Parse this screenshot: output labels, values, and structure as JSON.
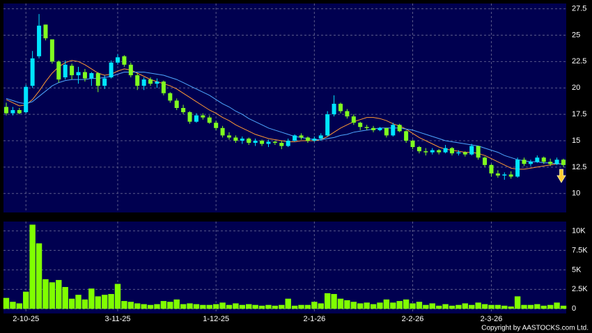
{
  "chart_data": {
    "type": "candlestick",
    "categories": [
      null,
      null,
      null,
      "2-10-25",
      null,
      null,
      null,
      null,
      null,
      null,
      null,
      null,
      null,
      null,
      null,
      null,
      null,
      "3-11-25",
      null,
      null,
      null,
      null,
      null,
      null,
      null,
      null,
      null,
      null,
      null,
      null,
      null,
      null,
      "1-12-25",
      null,
      null,
      null,
      null,
      null,
      null,
      null,
      null,
      null,
      null,
      null,
      null,
      null,
      null,
      "2-1-26",
      null,
      null,
      null,
      null,
      null,
      null,
      null,
      null,
      null,
      null,
      null,
      null,
      null,
      null,
      "2-2-26",
      null,
      null,
      null,
      null,
      null,
      null,
      null,
      null,
      null,
      null,
      null,
      "2-3-26",
      null,
      null,
      null,
      null,
      null,
      null,
      null,
      null,
      null,
      null,
      null
    ],
    "open": [
      18.2,
      17.6,
      17.9,
      17.7,
      20.2,
      23,
      26,
      24.6,
      22.5,
      21,
      22.1,
      21.2,
      21.5,
      20.9,
      21.4,
      20.2,
      21,
      22.4,
      23,
      22.2,
      21.2,
      20.2,
      20.8,
      20.4,
      20.6,
      19.5,
      18.8,
      18.1,
      17.7,
      16.8,
      17.4,
      17.2,
      16.7,
      16.2,
      15.5,
      15.3,
      15,
      15.2,
      14.8,
      15,
      14.7,
      14.9,
      14.8,
      14.5,
      15,
      15.5,
      15.3,
      15,
      15.2,
      15.5,
      17.5,
      18.5,
      17.8,
      17.3,
      16.7,
      16.3,
      16.2,
      16,
      16.2,
      15.5,
      16.5,
      15.9,
      15,
      14.4,
      14,
      13.9,
      14.1,
      13.9,
      14.3,
      13.8,
      13.9,
      13.7,
      14.5,
      13.4,
      12.7,
      11.9,
      11.7,
      11.8,
      11.6,
      13.2,
      12.8,
      13,
      13.4,
      13,
      12.8,
      13.2
    ],
    "high": [
      18.6,
      18.2,
      18.1,
      20.3,
      23.5,
      27,
      26,
      24.6,
      22.6,
      22.6,
      22.3,
      22,
      21.8,
      21.5,
      21.5,
      21.2,
      22.6,
      23.2,
      23.1,
      22.4,
      21.4,
      21,
      21,
      20.9,
      20.7,
      19.6,
      19,
      18.4,
      17.8,
      17.6,
      17.6,
      17.4,
      16.9,
      16.4,
      15.8,
      15.5,
      15.4,
      15.3,
      15.2,
      15.1,
      15.1,
      15,
      15,
      15.2,
      15.6,
      15.7,
      15.4,
      15.4,
      15.7,
      17.8,
      19.3,
      18.6,
      18,
      17.5,
      16.8,
      16.5,
      16.4,
      16.3,
      16.2,
      16.7,
      16.6,
      16,
      15.1,
      14.5,
      14.3,
      14.3,
      14.2,
      14.6,
      14.4,
      14.1,
      14,
      14.7,
      14.5,
      13.5,
      12.8,
      12.2,
      12,
      12.1,
      13.4,
      13.4,
      13.2,
      13.6,
      13.5,
      13.3,
      13.4,
      13.3
    ],
    "low": [
      17.4,
      17.4,
      17.5,
      17.6,
      20,
      22.8,
      24.5,
      22.3,
      20.5,
      20.8,
      20.8,
      20.4,
      20.6,
      20.2,
      19.6,
      19.9,
      20.9,
      22.2,
      22,
      21,
      19.8,
      19.8,
      20.2,
      20,
      19.3,
      18.6,
      17.9,
      17.5,
      16.6,
      16.7,
      17,
      16.6,
      16,
      15.3,
      15.1,
      14.8,
      14.7,
      14.6,
      14.5,
      14.5,
      14.4,
      14.6,
      14.2,
      14.4,
      14.9,
      15.1,
      14.8,
      14.9,
      15,
      15.4,
      17.3,
      17.6,
      17.1,
      16.5,
      16,
      16,
      15.8,
      15.9,
      15.3,
      15.4,
      15.8,
      14.8,
      14.2,
      13.8,
      13.6,
      13.7,
      13.7,
      13.8,
      13.6,
      13.6,
      13.5,
      13.6,
      13.2,
      12.5,
      11.6,
      11.5,
      11.3,
      11.4,
      11.5,
      12.6,
      12.6,
      12.9,
      12.8,
      12.6,
      12.7,
      12.5
    ],
    "close": [
      17.6,
      17.9,
      17.6,
      20.1,
      22.8,
      25.9,
      24.7,
      22.5,
      20.8,
      22.2,
      21.2,
      21.5,
      20.9,
      21.4,
      20.2,
      20.9,
      22.4,
      22.9,
      22.2,
      21.2,
      20.2,
      20.8,
      20.4,
      20.6,
      19.5,
      18.8,
      18.1,
      17.7,
      16.8,
      17.4,
      17.2,
      16.7,
      16.2,
      15.5,
      15.3,
      15,
      15.2,
      14.8,
      15,
      14.7,
      14.9,
      14.8,
      14.5,
      15,
      15.5,
      15.3,
      15,
      15.2,
      15.5,
      17.5,
      18.5,
      17.8,
      17.3,
      16.7,
      16.3,
      16.2,
      16,
      16.2,
      15.5,
      16.5,
      15.9,
      15,
      14.4,
      14,
      13.9,
      14.1,
      13.9,
      14.3,
      13.8,
      13.9,
      13.7,
      14.5,
      13.4,
      12.7,
      11.9,
      11.7,
      11.8,
      11.6,
      13.2,
      12.8,
      13,
      13.4,
      13,
      12.8,
      13.2,
      12.7
    ],
    "up_color": "#00e5ff",
    "down_color": "#80ff20",
    "lines": [
      {
        "color": "#ff9933",
        "values": [
          18.9,
          18.6,
          18.3,
          18.4,
          18.9,
          19.7,
          20.6,
          21.4,
          22,
          22.4,
          22.6,
          22.5,
          22.2,
          21.8,
          21.4,
          21.2,
          21.3,
          21.6,
          21.8,
          21.7,
          21.4,
          21.1,
          20.8,
          20.6,
          20.4,
          20.2,
          19.9,
          19.5,
          19.1,
          18.7,
          18.3,
          17.9,
          17.6,
          17.2,
          16.9,
          16.5,
          16.2,
          15.9,
          15.6,
          15.4,
          15.2,
          15.1,
          15,
          14.9,
          14.9,
          15,
          15,
          15,
          15.1,
          15.4,
          15.8,
          16.2,
          16.5,
          16.8,
          17,
          17.2,
          17.2,
          17.1,
          16.9,
          16.6,
          16.4,
          16.1,
          15.7,
          15.3,
          15,
          14.7,
          14.4,
          14.2,
          14.1,
          14,
          13.9,
          13.9,
          13.8,
          13.6,
          13.3,
          13,
          12.7,
          12.4,
          12.3,
          12.3,
          12.4,
          12.5,
          12.6,
          12.7,
          12.8,
          12.8
        ]
      },
      {
        "color": "#4fa8ff",
        "values": [
          19,
          18.8,
          18.6,
          18.5,
          18.7,
          19.2,
          19.7,
          20.2,
          20.5,
          20.7,
          20.8,
          20.8,
          20.8,
          20.9,
          20.9,
          21,
          21.1,
          21.3,
          21.5,
          21.5,
          21.5,
          21.5,
          21.4,
          21.3,
          21.2,
          21,
          20.8,
          20.5,
          20.2,
          19.9,
          19.6,
          19.3,
          18.9,
          18.5,
          18.2,
          17.8,
          17.5,
          17.1,
          16.8,
          16.5,
          16.2,
          16,
          15.8,
          15.6,
          15.4,
          15.3,
          15.2,
          15.1,
          15.1,
          15.2,
          15.3,
          15.5,
          15.6,
          15.8,
          15.9,
          16,
          16.1,
          16.2,
          16.2,
          16.2,
          16.2,
          16.1,
          16,
          15.8,
          15.6,
          15.4,
          15.2,
          15,
          14.9,
          14.8,
          14.7,
          14.6,
          14.5,
          14.3,
          14.1,
          13.9,
          13.6,
          13.4,
          13.2,
          13.1,
          13,
          13,
          12.9,
          12.9,
          12.8,
          12.8
        ]
      }
    ],
    "ylim": [
      8.2,
      28
    ],
    "yticks": [
      10,
      12.5,
      15,
      17.5,
      20,
      22.5,
      25,
      27.5
    ],
    "grid": true,
    "volume": {
      "color": "#80ff00",
      "values": [
        1400,
        900,
        700,
        2200,
        10800,
        8400,
        3800,
        3400,
        3700,
        2800,
        1300,
        1800,
        1200,
        2600,
        1600,
        1800,
        1900,
        3200,
        1000,
        900,
        700,
        600,
        500,
        600,
        1000,
        900,
        1200,
        600,
        700,
        600,
        500,
        500,
        600,
        800,
        500,
        700,
        500,
        600,
        500,
        400,
        500,
        400,
        500,
        1300,
        400,
        500,
        500,
        900,
        700,
        2000,
        1900,
        1300,
        1100,
        900,
        700,
        800,
        600,
        800,
        1200,
        800,
        1000,
        1200,
        700,
        900,
        500,
        700,
        400,
        600,
        400,
        500,
        700,
        500,
        800,
        600,
        500,
        500,
        400,
        300,
        1600,
        500,
        500,
        600,
        400,
        500,
        800,
        400
      ],
      "ylim": [
        -600,
        11200
      ],
      "yticks": [
        0,
        {
          "value": 2500,
          "label": "2.5K"
        },
        {
          "value": 5000,
          "label": "5K"
        },
        {
          "value": 7500,
          "label": "7.5K"
        },
        {
          "value": 10000,
          "label": "10K"
        }
      ]
    },
    "copyright": "Copyright by AASTOCKS.com Ltd."
  }
}
